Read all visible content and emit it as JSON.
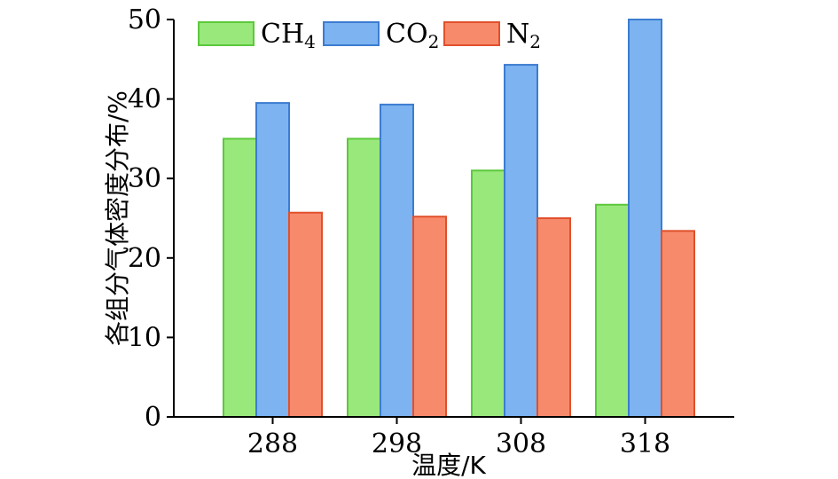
{
  "chart_data": {
    "type": "bar",
    "categories": [
      "288",
      "298",
      "308",
      "318"
    ],
    "series": [
      {
        "name": "CH4",
        "display": {
          "base": "CH",
          "sub": "4"
        },
        "values": [
          35.0,
          35.0,
          31.0,
          26.7
        ],
        "fill": "#99e87c",
        "stroke": "#5cc83c"
      },
      {
        "name": "CO2",
        "display": {
          "base": "CO",
          "sub": "2"
        },
        "values": [
          39.5,
          39.3,
          44.3,
          50.0
        ],
        "fill": "#7cb3f0",
        "stroke": "#3c7cd0"
      },
      {
        "name": "N2",
        "display": {
          "base": "N",
          "sub": "2"
        },
        "values": [
          25.7,
          25.2,
          25.0,
          23.4
        ],
        "fill": "#f88a6c",
        "stroke": "#e0502c"
      }
    ],
    "xlabel": "温度/K",
    "ylabel": "各组分气体密度分布/%",
    "ylim": [
      0,
      50
    ],
    "yticks": [
      0,
      10,
      20,
      30,
      40,
      50
    ],
    "grid": false,
    "legend_position": "top-left"
  }
}
